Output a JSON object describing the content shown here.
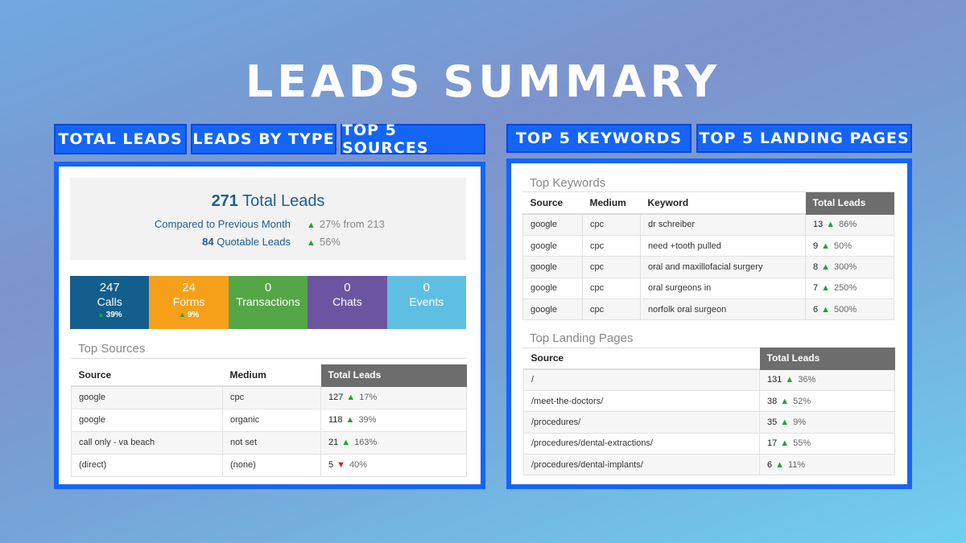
{
  "title": "LEADS SUMMARY",
  "tabs_left": [
    {
      "label": "TOTAL LEADS"
    },
    {
      "label": "LEADS BY TYPE"
    },
    {
      "label": "TOP 5 SOURCES"
    }
  ],
  "tabs_right": [
    {
      "label": "TOP 5 KEYWORDS"
    },
    {
      "label": "TOP 5 LANDING PAGES"
    }
  ],
  "summary": {
    "total_value": "271",
    "total_label": "Total Leads",
    "compared_label": "Compared to Previous Month",
    "compared_value": "27% from 213",
    "compared_trend": "up",
    "quotable_value": "84",
    "quotable_label": "Quotable Leads",
    "quotable_change": "56%",
    "quotable_trend": "up"
  },
  "lead_types": [
    {
      "value": "247",
      "label": "Calls",
      "change": "39%",
      "color": "#145e8e"
    },
    {
      "value": "24",
      "label": "Forms",
      "change": "9%",
      "color": "#f6a01a"
    },
    {
      "value": "0",
      "label": "Transactions",
      "change": "",
      "color": "#55a646"
    },
    {
      "value": "0",
      "label": "Chats",
      "change": "",
      "color": "#6c54a1"
    },
    {
      "value": "0",
      "label": "Events",
      "change": "",
      "color": "#5ebfe2"
    }
  ],
  "top_sources": {
    "title": "Top Sources",
    "headers": [
      "Source",
      "Medium",
      "Total Leads"
    ],
    "rows": [
      {
        "source": "google",
        "medium": "cpc",
        "total": "127",
        "trend": "up",
        "change": "17%"
      },
      {
        "source": "google",
        "medium": "organic",
        "total": "118",
        "trend": "up",
        "change": "39%"
      },
      {
        "source": "call only - va beach",
        "medium": "not set",
        "total": "21",
        "trend": "up",
        "change": "163%"
      },
      {
        "source": "(direct)",
        "medium": "(none)",
        "total": "5",
        "trend": "down",
        "change": "40%"
      }
    ]
  },
  "top_keywords": {
    "title": "Top Keywords",
    "headers": [
      "Source",
      "Medium",
      "Keyword",
      "Total Leads"
    ],
    "rows": [
      {
        "source": "google",
        "medium": "cpc",
        "keyword": "dr schreiber",
        "total": "13",
        "trend": "up",
        "change": "86%"
      },
      {
        "source": "google",
        "medium": "cpc",
        "keyword": "need +tooth pulled",
        "total": "9",
        "trend": "up",
        "change": "50%"
      },
      {
        "source": "google",
        "medium": "cpc",
        "keyword": "oral and maxillofacial surgery",
        "total": "8",
        "trend": "up",
        "change": "300%"
      },
      {
        "source": "google",
        "medium": "cpc",
        "keyword": "oral surgeons in",
        "total": "7",
        "trend": "up",
        "change": "250%"
      },
      {
        "source": "google",
        "medium": "cpc",
        "keyword": "norfolk oral surgeon",
        "total": "6",
        "trend": "up",
        "change": "500%"
      }
    ]
  },
  "top_landing_pages": {
    "title": "Top Landing Pages",
    "headers": [
      "Source",
      "Total Leads"
    ],
    "rows": [
      {
        "source": "/",
        "total": "131",
        "trend": "up",
        "change": "36%"
      },
      {
        "source": "/meet-the-doctors/",
        "total": "38",
        "trend": "up",
        "change": "52%"
      },
      {
        "source": "/procedures/",
        "total": "35",
        "trend": "up",
        "change": "9%"
      },
      {
        "source": "/procedures/dental-extractions/",
        "total": "17",
        "trend": "up",
        "change": "55%"
      },
      {
        "source": "/procedures/dental-implants/",
        "total": "6",
        "trend": "up",
        "change": "11%"
      }
    ]
  },
  "colors": {
    "accent_blue": "#1565f5",
    "trend_up": "#1fa23a",
    "trend_down": "#d0232a",
    "header_dark": "#6d6d6d",
    "text_blue": "#1f5d8f"
  },
  "icons": {
    "trend_up": "chevron-up-icon",
    "trend_down": "chevron-down-icon"
  }
}
